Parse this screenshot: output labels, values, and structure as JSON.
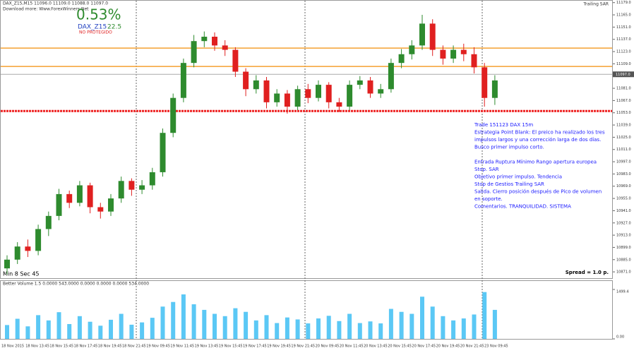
{
  "chart_data": {
    "type": "candlestick",
    "header": "DAX_Z15,M15 11096.0 11109.0 11088.0 11097.0",
    "subheader": "Download more: Www.ForexWinners.Net",
    "percent": "0.53%",
    "symbol": "DAX_Z15",
    "symbol_value": "22.5",
    "status": "NO PROTEGIDO",
    "indicator": "Trailing SAR",
    "note": [
      "Trade 151123 DAX 15m",
      "Estrategia Point Blank: El preico ha realizado los tres",
      "impulsos largos y una corrección larga de dos días.",
      "Busco primer impulso corto.",
      "",
      "Entrada Ruptura Mínimo Rango apertura europea",
      "Stop. SAR",
      "Objetivo primer impulso. Tendencia",
      "Stop de Gestios Trailing SAR",
      "Salida. Cierro posición después de Pico de volumen",
      "en soporte.",
      "Comentarios. TRANQUILIDAD. SISTEMA"
    ],
    "spread": "Spread = 1.0 p.",
    "timer": "Min 8 Sec 45",
    "open": [
      10875,
      10885,
      10900,
      10895,
      10920,
      10935,
      10960,
      10950,
      10970,
      10945,
      10940,
      10955,
      10975,
      10965,
      10970,
      10985,
      11030,
      11070,
      11110,
      11135,
      11140,
      11130,
      11125,
      11100,
      11080,
      11090,
      11065,
      11075,
      11060,
      11080,
      11070,
      11085,
      11065,
      11060,
      11085,
      11090,
      11075,
      11080,
      11110,
      11120,
      11130,
      11155,
      11125,
      11115,
      11125,
      11120,
      11105,
      11070
    ],
    "high": [
      10890,
      10905,
      10908,
      10925,
      10940,
      10966,
      10964,
      10975,
      10973,
      10950,
      10960,
      10980,
      10978,
      10976,
      10990,
      11035,
      11075,
      11115,
      11142,
      11146,
      11145,
      11136,
      11128,
      11104,
      11096,
      11094,
      11080,
      11079,
      11084,
      11086,
      11090,
      11088,
      11070,
      11090,
      11095,
      11094,
      11086,
      11115,
      11126,
      11136,
      11165,
      11160,
      11130,
      11130,
      11132,
      11128,
      11110,
      11096
    ],
    "low": [
      10868,
      10880,
      10888,
      10890,
      10912,
      10930,
      10944,
      10946,
      10938,
      10932,
      10935,
      10950,
      10958,
      10960,
      10965,
      10980,
      11025,
      11065,
      11105,
      11128,
      11124,
      11118,
      11094,
      11072,
      11075,
      11058,
      11060,
      11052,
      11056,
      11064,
      11066,
      11058,
      11054,
      11056,
      11080,
      11070,
      11070,
      11076,
      11104,
      11114,
      11125,
      11118,
      11108,
      11110,
      11112,
      11098,
      11060,
      11062
    ],
    "close": [
      10885,
      10900,
      10895,
      10920,
      10935,
      10960,
      10950,
      10970,
      10945,
      10940,
      10955,
      10975,
      10965,
      10970,
      10985,
      11030,
      11070,
      11110,
      11135,
      11140,
      11130,
      11125,
      11100,
      11080,
      11090,
      11065,
      11075,
      11060,
      11080,
      11070,
      11085,
      11065,
      11060,
      11085,
      11090,
      11075,
      11080,
      11110,
      11120,
      11130,
      11155,
      11125,
      11115,
      11125,
      11120,
      11105,
      11070,
      11090
    ],
    "up_color": "#2e8b2e",
    "down_color": "#e02020",
    "ylim": [
      10863,
      11182
    ],
    "yticks": [
      {
        "value": 11179,
        "label": "11179.0"
      },
      {
        "value": 11165,
        "label": "11165.0"
      },
      {
        "value": 11151,
        "label": "11151.0"
      },
      {
        "value": 11137,
        "label": "11137.0"
      },
      {
        "value": 11123,
        "label": "11123.0"
      },
      {
        "value": 11109,
        "label": "11109.0"
      },
      {
        "value": 11095,
        "label": "11095.0"
      },
      {
        "value": 11081,
        "label": "11081.0"
      },
      {
        "value": 11067,
        "label": "11067.0"
      },
      {
        "value": 11053,
        "label": "11053.0"
      },
      {
        "value": 11039,
        "label": "11039.0"
      },
      {
        "value": 11025,
        "label": "11025.0"
      },
      {
        "value": 11011,
        "label": "11011.0"
      },
      {
        "value": 10997,
        "label": "10997.0"
      },
      {
        "value": 10983,
        "label": "10983.0"
      },
      {
        "value": 10969,
        "label": "10969.0"
      },
      {
        "value": 10955,
        "label": "10955.0"
      },
      {
        "value": 10941,
        "label": "10941.0"
      },
      {
        "value": 10927,
        "label": "10927.0"
      },
      {
        "value": 10913,
        "label": "10913.0"
      },
      {
        "value": 10899,
        "label": "10899.0"
      },
      {
        "value": 10885,
        "label": "10885.0"
      },
      {
        "value": 10871,
        "label": "10871.0"
      }
    ],
    "levels": [
      {
        "value": 11127,
        "color": "#f5a030"
      },
      {
        "value": 11106,
        "color": "#f5a030"
      },
      {
        "value": 11055,
        "color": "#ee2020"
      }
    ],
    "current": {
      "value": 11097,
      "label": "11097.0"
    },
    "volume_title": "Better Volume 1.5 0.0000 543.0000 0.0000 0.0000 0.0000 534.0000",
    "volume": [
      420,
      610,
      380,
      720,
      560,
      810,
      450,
      690,
      520,
      400,
      580,
      760,
      430,
      500,
      640,
      980,
      1120,
      1350,
      1050,
      880,
      760,
      690,
      930,
      820,
      560,
      720,
      480,
      650,
      590,
      470,
      620,
      700,
      540,
      760,
      480,
      530,
      470,
      910,
      820,
      760,
      1280,
      980,
      690,
      560,
      620,
      740,
      1420,
      880
    ],
    "volume_color": "#5bc8f5",
    "vlim": [
      0,
      1499.4
    ],
    "vticks": [
      {
        "value": 1499.4,
        "label": "1499.4"
      },
      {
        "value": 0,
        "label": "0.00"
      }
    ],
    "times": [
      "18 Nov 2015",
      "18 Nov 13:45",
      "18 Nov 15:45",
      "18 Nov 17:45",
      "18 Nov 19:45",
      "18 Nov 21:45",
      "19 Nov 09:45",
      "19 Nov 11:45",
      "19 Nov 13:45",
      "19 Nov 15:45",
      "19 Nov 17:45",
      "19 Nov 19:45",
      "19 Nov 21:45",
      "20 Nov 09:45",
      "20 Nov 11:45",
      "20 Nov 13:45",
      "20 Nov 15:45",
      "20 Nov 17:45",
      "20 Nov 19:45",
      "20 Nov 21:45",
      "23 Nov 09:45"
    ]
  }
}
